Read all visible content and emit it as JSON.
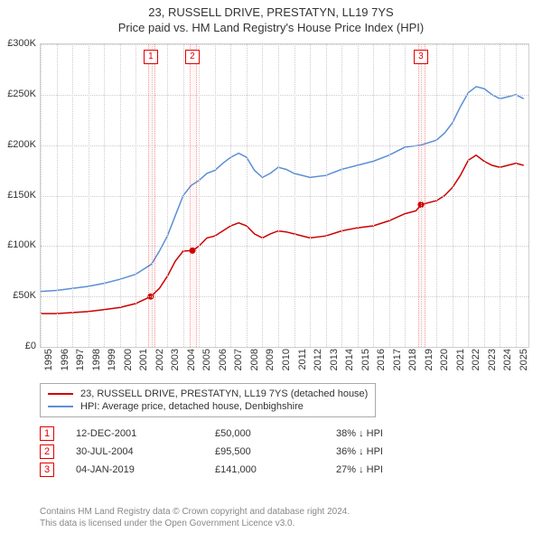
{
  "title_line1": "23, RUSSELL DRIVE, PRESTATYN, LL19 7YS",
  "title_line2": "Price paid vs. HM Land Registry's House Price Index (HPI)",
  "chart": {
    "type": "line",
    "background_color": "#ffffff",
    "grid_color": "#cccccc",
    "border_color": "#d0d0d0",
    "x": {
      "min": 1995,
      "max": 2025.8,
      "ticks": [
        1995,
        1996,
        1997,
        1998,
        1999,
        2000,
        2001,
        2002,
        2003,
        2004,
        2005,
        2006,
        2007,
        2008,
        2009,
        2010,
        2011,
        2012,
        2013,
        2014,
        2015,
        2016,
        2017,
        2018,
        2019,
        2020,
        2021,
        2022,
        2023,
        2024,
        2025
      ],
      "label_fontsize": 11
    },
    "y": {
      "min": 0,
      "max": 300000,
      "ticks": [
        0,
        50000,
        100000,
        150000,
        200000,
        250000,
        300000
      ],
      "tick_labels": [
        "£0",
        "£50K",
        "£100K",
        "£150K",
        "£200K",
        "£250K",
        "£300K"
      ],
      "label_fontsize": 11
    },
    "series": [
      {
        "id": "property",
        "label": "23, RUSSELL DRIVE, PRESTATYN, LL19 7YS (detached house)",
        "color": "#cc0000",
        "line_width": 1.5,
        "points": [
          [
            1995.0,
            33000
          ],
          [
            1996.0,
            33000
          ],
          [
            1997.0,
            34000
          ],
          [
            1998.0,
            35000
          ],
          [
            1999.0,
            37000
          ],
          [
            2000.0,
            39000
          ],
          [
            2001.0,
            43000
          ],
          [
            2001.95,
            50000
          ],
          [
            2002.5,
            58000
          ],
          [
            2003.0,
            70000
          ],
          [
            2003.5,
            85000
          ],
          [
            2004.0,
            95000
          ],
          [
            2004.6,
            95500
          ],
          [
            2005.0,
            100000
          ],
          [
            2005.5,
            108000
          ],
          [
            2006.0,
            110000
          ],
          [
            2006.5,
            115000
          ],
          [
            2007.0,
            120000
          ],
          [
            2007.5,
            123000
          ],
          [
            2008.0,
            120000
          ],
          [
            2008.5,
            112000
          ],
          [
            2009.0,
            108000
          ],
          [
            2009.5,
            112000
          ],
          [
            2010.0,
            115000
          ],
          [
            2010.5,
            114000
          ],
          [
            2011.0,
            112000
          ],
          [
            2012.0,
            108000
          ],
          [
            2013.0,
            110000
          ],
          [
            2014.0,
            115000
          ],
          [
            2015.0,
            118000
          ],
          [
            2016.0,
            120000
          ],
          [
            2017.0,
            125000
          ],
          [
            2018.0,
            132000
          ],
          [
            2018.7,
            135000
          ],
          [
            2019.01,
            141000
          ],
          [
            2019.5,
            143000
          ],
          [
            2020.0,
            145000
          ],
          [
            2020.5,
            150000
          ],
          [
            2021.0,
            158000
          ],
          [
            2021.5,
            170000
          ],
          [
            2022.0,
            185000
          ],
          [
            2022.5,
            190000
          ],
          [
            2023.0,
            184000
          ],
          [
            2023.5,
            180000
          ],
          [
            2024.0,
            178000
          ],
          [
            2024.5,
            180000
          ],
          [
            2025.0,
            182000
          ],
          [
            2025.5,
            180000
          ]
        ]
      },
      {
        "id": "hpi",
        "label": "HPI: Average price, detached house, Denbighshire",
        "color": "#5b8fd6",
        "line_width": 1.5,
        "points": [
          [
            1995.0,
            55000
          ],
          [
            1996.0,
            56000
          ],
          [
            1997.0,
            58000
          ],
          [
            1998.0,
            60000
          ],
          [
            1999.0,
            63000
          ],
          [
            2000.0,
            67000
          ],
          [
            2001.0,
            72000
          ],
          [
            2002.0,
            82000
          ],
          [
            2002.5,
            95000
          ],
          [
            2003.0,
            110000
          ],
          [
            2003.5,
            130000
          ],
          [
            2004.0,
            150000
          ],
          [
            2004.5,
            160000
          ],
          [
            2005.0,
            165000
          ],
          [
            2005.5,
            172000
          ],
          [
            2006.0,
            175000
          ],
          [
            2006.5,
            182000
          ],
          [
            2007.0,
            188000
          ],
          [
            2007.5,
            192000
          ],
          [
            2008.0,
            188000
          ],
          [
            2008.5,
            175000
          ],
          [
            2009.0,
            168000
          ],
          [
            2009.5,
            172000
          ],
          [
            2010.0,
            178000
          ],
          [
            2010.5,
            176000
          ],
          [
            2011.0,
            172000
          ],
          [
            2012.0,
            168000
          ],
          [
            2013.0,
            170000
          ],
          [
            2014.0,
            176000
          ],
          [
            2015.0,
            180000
          ],
          [
            2016.0,
            184000
          ],
          [
            2017.0,
            190000
          ],
          [
            2018.0,
            198000
          ],
          [
            2019.0,
            200000
          ],
          [
            2020.0,
            205000
          ],
          [
            2020.5,
            212000
          ],
          [
            2021.0,
            222000
          ],
          [
            2021.5,
            238000
          ],
          [
            2022.0,
            252000
          ],
          [
            2022.5,
            258000
          ],
          [
            2023.0,
            256000
          ],
          [
            2023.5,
            250000
          ],
          [
            2024.0,
            246000
          ],
          [
            2024.5,
            248000
          ],
          [
            2025.0,
            250000
          ],
          [
            2025.5,
            246000
          ]
        ]
      }
    ],
    "sale_markers": [
      {
        "n": 1,
        "x": 2001.95,
        "y": 50000
      },
      {
        "n": 2,
        "x": 2004.58,
        "y": 95500
      },
      {
        "n": 3,
        "x": 2019.01,
        "y": 141000
      }
    ],
    "sale_band_width_years": 0.35,
    "sale_band_color": "rgba(255,0,0,0.03)",
    "sale_band_border": "rgba(255,0,0,0.4)",
    "marker_radius": 3.5
  },
  "legend": {
    "border_color": "#aaaaaa",
    "fontsize": 11
  },
  "sales_table": {
    "rows": [
      {
        "n": "1",
        "date": "12-DEC-2001",
        "price": "£50,000",
        "diff": "38% ↓ HPI"
      },
      {
        "n": "2",
        "date": "30-JUL-2004",
        "price": "£95,500",
        "diff": "36% ↓ HPI"
      },
      {
        "n": "3",
        "date": "04-JAN-2019",
        "price": "£141,000",
        "diff": "27% ↓ HPI"
      }
    ]
  },
  "footer_line1": "Contains HM Land Registry data © Crown copyright and database right 2024.",
  "footer_line2": "This data is licensed under the Open Government Licence v3.0."
}
